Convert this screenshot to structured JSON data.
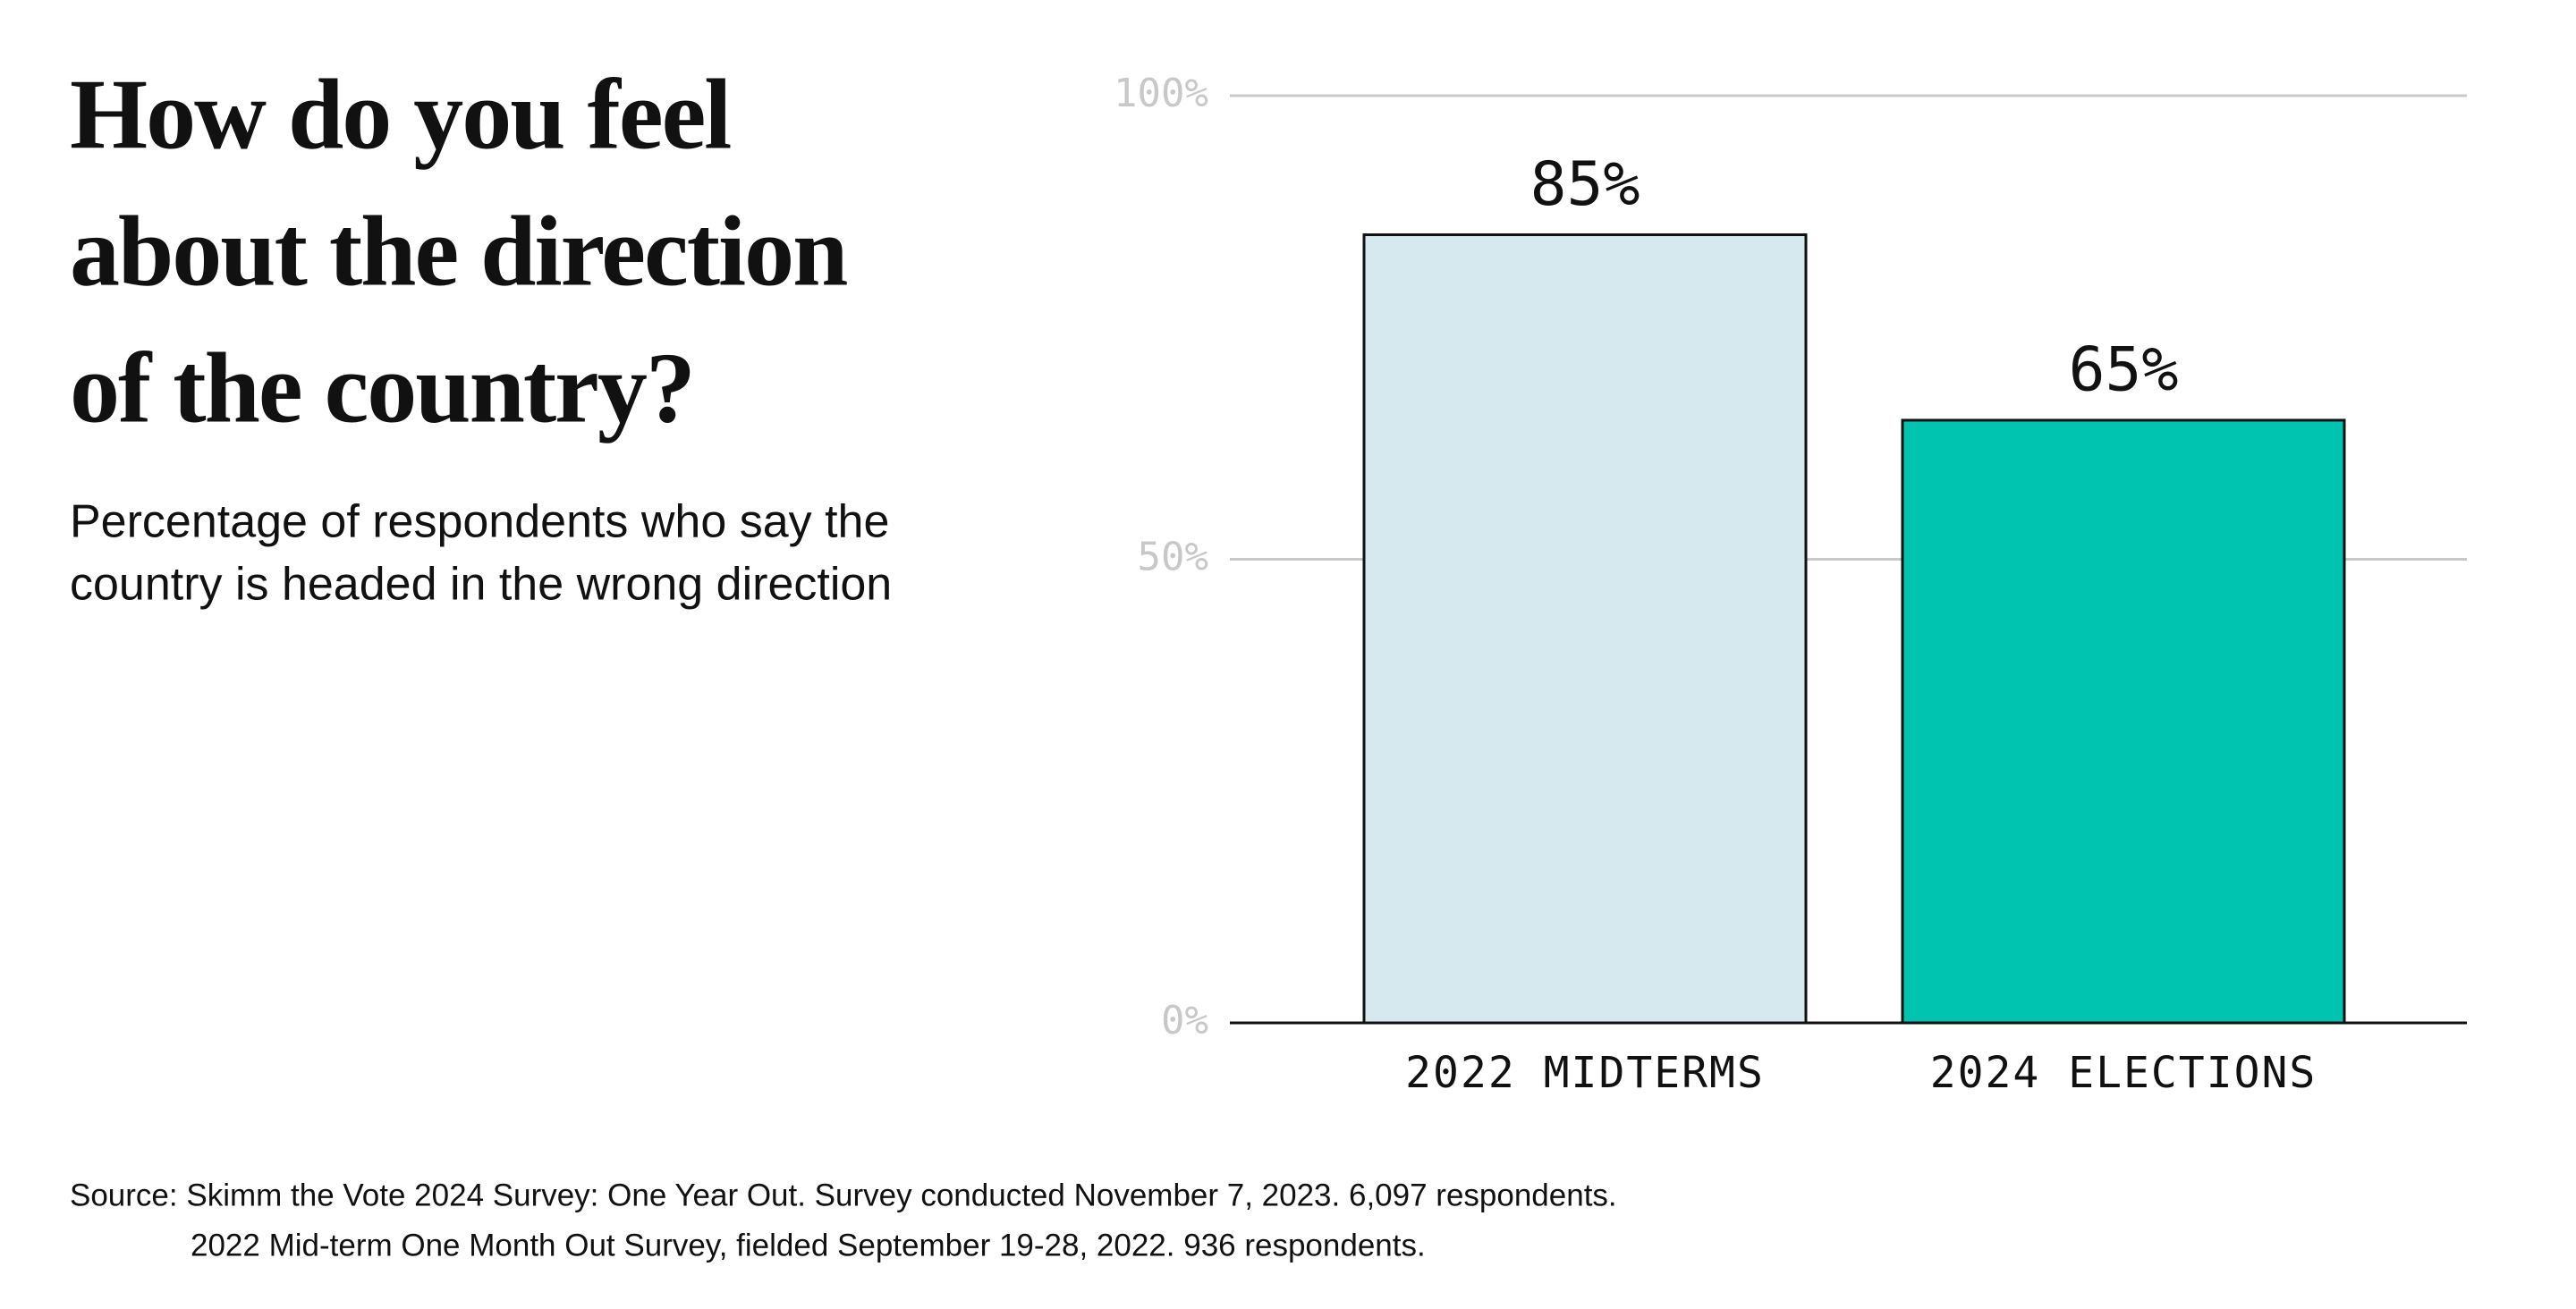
{
  "chart_data": {
    "type": "bar",
    "title": [
      "How do you feel",
      "about the direction",
      "of the country?"
    ],
    "subtitle": [
      "Percentage of respondents who say the",
      "country is headed in the wrong direction"
    ],
    "categories": [
      "2022 MIDTERMS",
      "2024 ELECTIONS"
    ],
    "values": [
      85,
      65
    ],
    "value_labels": [
      "85%",
      "65%"
    ],
    "colors": [
      "#d6e9ef",
      "#00c4b0"
    ],
    "ylim": [
      0,
      100
    ],
    "yticks": [
      {
        "value": 0,
        "label": "0%"
      },
      {
        "value": 50,
        "label": "50%"
      },
      {
        "value": 100,
        "label": "100%"
      }
    ],
    "grid": true,
    "source": [
      "Source: Skimm the Vote 2024 Survey: One Year Out. Survey conducted November 7, 2023. 6,097 respondents.",
      "2022 Mid-term One Month Out Survey, fielded September 19-28, 2022. 936 respondents."
    ]
  }
}
